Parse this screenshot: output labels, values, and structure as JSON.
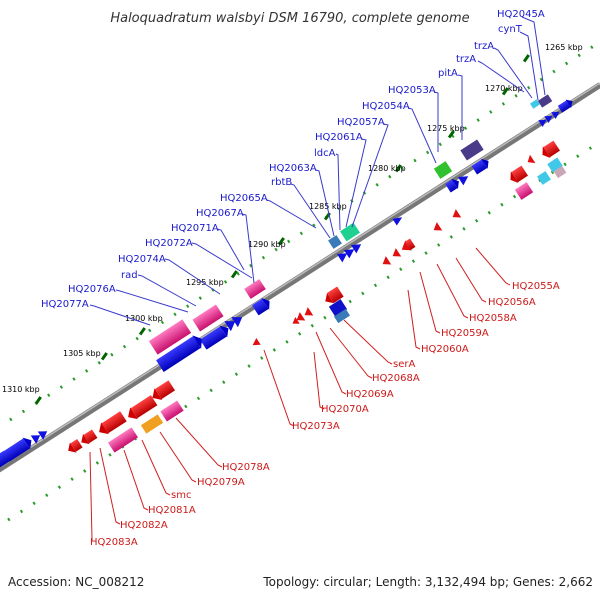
{
  "title": "Haloquadratum walsbyi DSM 16790, complete genome",
  "footer": {
    "accession": "Accession: NC_008212",
    "summary": "Topology: circular; Length: 3,132,494 bp; Genes: 2,662"
  },
  "ticks": [
    "1265 kbp",
    "1270 kbp",
    "1275 kbp",
    "1280 kbp",
    "1285 kbp",
    "1290 kbp",
    "1295 kbp",
    "1300 kbp",
    "1305 kbp",
    "1310 kbp"
  ],
  "top_strand_labels": [
    "HQ2045A",
    "cynT",
    "trzA",
    "trzA",
    "pitA",
    "HQ2053A",
    "HQ2054A",
    "HQ2057A",
    "HQ2061A",
    "ldcA",
    "HQ2063A",
    "rbtB",
    "HQ2065A",
    "HQ2067A",
    "HQ2071A",
    "HQ2072A",
    "HQ2074A",
    "rad",
    "HQ2076A",
    "HQ2077A"
  ],
  "bottom_strand_labels": [
    "HQ2055A",
    "HQ2056A",
    "HQ2058A",
    "HQ2059A",
    "HQ2060A",
    "serA",
    "HQ2068A",
    "HQ2069A",
    "HQ2070A",
    "HQ2073A",
    "HQ2078A",
    "HQ2079A",
    "smc",
    "HQ2081A",
    "HQ2082A",
    "HQ2083A"
  ],
  "colors": {
    "forward_gene": "#1010e0",
    "reverse_gene": "#e01010",
    "pink_gene": "#e0308a",
    "backbone": "#777777",
    "dots": "#2a9a2a",
    "top_label": "#1a1acc",
    "bottom_label": "#cc1a1a"
  }
}
